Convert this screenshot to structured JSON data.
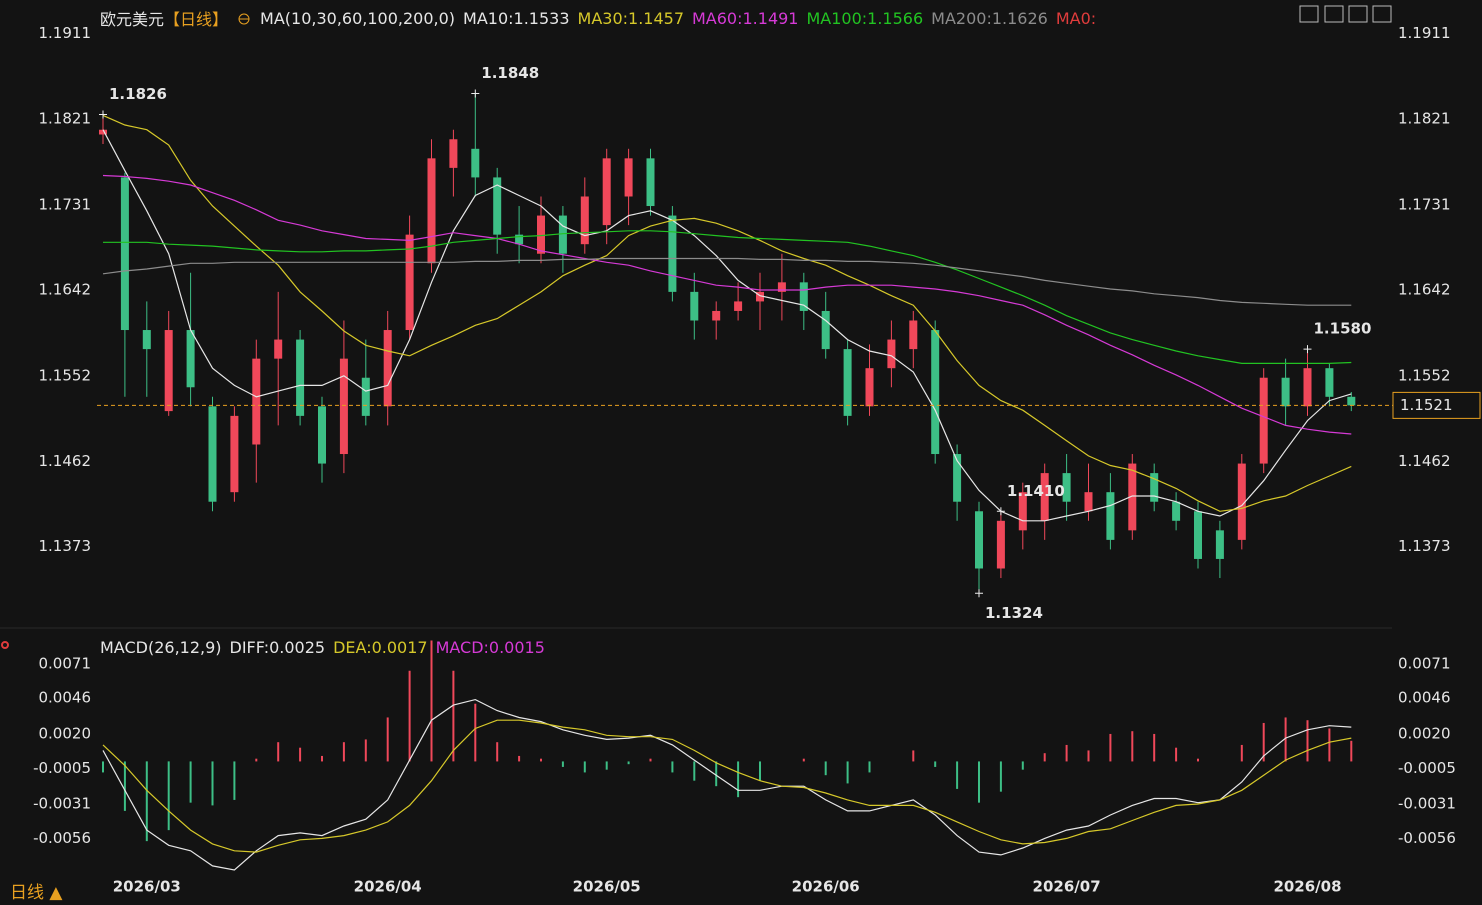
{
  "chart_data": [
    {
      "type": "candlestick",
      "title": "欧元美元",
      "subtitle": "【日线】",
      "subtitle_color": "#e8a020",
      "indicator": "MA(10,30,60,100,200,0)",
      "indicator_extra": "MA0:",
      "indicator_extra_color": "#e03c3c",
      "categories": [
        null,
        null,
        "2026/03",
        null,
        null,
        null,
        null,
        null,
        null,
        null,
        null,
        null,
        null,
        "2026/04",
        null,
        null,
        null,
        null,
        null,
        null,
        null,
        null,
        null,
        "2026/05",
        null,
        null,
        null,
        null,
        null,
        null,
        null,
        null,
        null,
        "2026/06",
        null,
        null,
        null,
        null,
        null,
        null,
        null,
        null,
        null,
        null,
        "2026/07",
        null,
        null,
        null,
        null,
        null,
        null,
        null,
        null,
        null,
        null,
        "2026/08",
        null,
        null
      ],
      "open": [
        1.1805,
        1.176,
        1.16,
        1.1515,
        1.16,
        1.152,
        1.143,
        1.148,
        1.157,
        1.159,
        1.152,
        1.147,
        1.155,
        1.152,
        1.16,
        1.167,
        1.177,
        1.179,
        1.176,
        1.17,
        1.168,
        1.172,
        1.169,
        1.171,
        1.174,
        1.178,
        1.172,
        1.164,
        1.161,
        1.162,
        1.163,
        1.164,
        1.165,
        1.162,
        1.158,
        1.152,
        1.156,
        1.158,
        1.16,
        1.147,
        1.141,
        1.135,
        1.139,
        1.14,
        1.145,
        1.141,
        1.143,
        1.139,
        1.145,
        1.142,
        1.141,
        1.139,
        1.138,
        1.146,
        1.155,
        1.152,
        1.156,
        1.153
      ],
      "high": [
        1.1826,
        1.1765,
        1.163,
        1.162,
        1.166,
        1.153,
        1.152,
        1.159,
        1.164,
        1.16,
        1.153,
        1.161,
        1.159,
        1.162,
        1.172,
        1.18,
        1.181,
        1.1848,
        1.177,
        1.173,
        1.174,
        1.173,
        1.176,
        1.179,
        1.179,
        1.179,
        1.173,
        1.166,
        1.163,
        1.165,
        1.166,
        1.168,
        1.166,
        1.164,
        1.159,
        1.1585,
        1.161,
        1.162,
        1.161,
        1.148,
        1.142,
        1.141,
        1.144,
        1.146,
        1.147,
        1.146,
        1.145,
        1.147,
        1.146,
        1.143,
        1.142,
        1.14,
        1.147,
        1.156,
        1.157,
        1.158,
        1.1565,
        1.1535
      ],
      "low": [
        1.1795,
        1.153,
        1.153,
        1.151,
        1.152,
        1.141,
        1.142,
        1.144,
        1.15,
        1.15,
        1.144,
        1.145,
        1.15,
        1.15,
        1.159,
        1.166,
        1.174,
        1.174,
        1.168,
        1.167,
        1.167,
        1.166,
        1.168,
        1.169,
        1.171,
        1.172,
        1.163,
        1.159,
        1.159,
        1.161,
        1.16,
        1.161,
        1.16,
        1.157,
        1.15,
        1.151,
        1.154,
        1.156,
        1.146,
        1.14,
        1.1324,
        1.134,
        1.137,
        1.138,
        1.14,
        1.14,
        1.137,
        1.138,
        1.141,
        1.139,
        1.135,
        1.134,
        1.137,
        1.145,
        1.15,
        1.151,
        1.152,
        1.1515
      ],
      "close": [
        1.181,
        1.16,
        1.158,
        1.16,
        1.154,
        1.142,
        1.151,
        1.157,
        1.159,
        1.151,
        1.146,
        1.157,
        1.151,
        1.16,
        1.17,
        1.178,
        1.18,
        1.176,
        1.17,
        1.169,
        1.172,
        1.168,
        1.174,
        1.178,
        1.178,
        1.173,
        1.164,
        1.161,
        1.162,
        1.163,
        1.164,
        1.165,
        1.162,
        1.158,
        1.151,
        1.156,
        1.159,
        1.161,
        1.147,
        1.142,
        1.135,
        1.14,
        1.143,
        1.145,
        1.142,
        1.143,
        1.138,
        1.146,
        1.142,
        1.14,
        1.136,
        1.136,
        1.146,
        1.155,
        1.152,
        1.156,
        1.153,
        1.1521
      ],
      "up_color": "#f0485a",
      "down_color": "#3dbf86",
      "series": [
        {
          "name": "MA10:1.1533",
          "color": "#e6e6e6",
          "values": [
            1.181,
            1.1767,
            1.1725,
            1.168,
            1.16,
            1.156,
            1.1542,
            1.153,
            1.1536,
            1.1542,
            1.1542,
            1.1552,
            1.1536,
            1.1542,
            1.159,
            1.165,
            1.1704,
            1.1741,
            1.1752,
            1.1741,
            1.173,
            1.1709,
            1.1699,
            1.1704,
            1.172,
            1.1725,
            1.1715,
            1.1699,
            1.1678,
            1.1652,
            1.1636,
            1.1631,
            1.1626,
            1.161,
            1.159,
            1.1578,
            1.1573,
            1.1556,
            1.1516,
            1.1463,
            1.1432,
            1.141,
            1.14,
            1.14,
            1.1405,
            1.141,
            1.1416,
            1.1426,
            1.1426,
            1.142,
            1.141,
            1.1405,
            1.1416,
            1.1442,
            1.1474,
            1.1505,
            1.1526,
            1.1533
          ]
        },
        {
          "name": "MA30:1.1457",
          "color": "#d6c82a",
          "values": [
            1.1825,
            1.1815,
            1.181,
            1.1794,
            1.1757,
            1.173,
            1.1709,
            1.1688,
            1.1668,
            1.164,
            1.162,
            1.1599,
            1.1584,
            1.1578,
            1.1573,
            1.1584,
            1.1594,
            1.1605,
            1.1612,
            1.1626,
            1.164,
            1.1657,
            1.1668,
            1.1678,
            1.1699,
            1.1709,
            1.1715,
            1.1717,
            1.1712,
            1.1704,
            1.1694,
            1.1683,
            1.1675,
            1.1668,
            1.1657,
            1.1647,
            1.1636,
            1.1626,
            1.1599,
            1.1568,
            1.1542,
            1.1526,
            1.1516,
            1.15,
            1.1484,
            1.1468,
            1.1458,
            1.1453,
            1.1444,
            1.1434,
            1.1421,
            1.141,
            1.1413,
            1.1421,
            1.1426,
            1.1437,
            1.1447,
            1.1457
          ]
        },
        {
          "name": "MA60:1.1491",
          "color": "#d63ad6",
          "values": [
            1.1762,
            1.1761,
            1.1759,
            1.1756,
            1.1752,
            1.1744,
            1.1736,
            1.1726,
            1.1715,
            1.171,
            1.1704,
            1.17,
            1.1696,
            1.1695,
            1.1694,
            1.1698,
            1.1702,
            1.1699,
            1.1696,
            1.169,
            1.1683,
            1.1679,
            1.1675,
            1.1671,
            1.1668,
            1.1662,
            1.1657,
            1.1652,
            1.1647,
            1.1645,
            1.1642,
            1.1642,
            1.1642,
            1.1645,
            1.1647,
            1.1647,
            1.1647,
            1.1645,
            1.1643,
            1.164,
            1.1636,
            1.1631,
            1.1626,
            1.1616,
            1.1605,
            1.1595,
            1.1584,
            1.1574,
            1.1563,
            1.1553,
            1.1542,
            1.153,
            1.1518,
            1.1509,
            1.15,
            1.1496,
            1.1493,
            1.1491
          ]
        },
        {
          "name": "MA100:1.1566",
          "color": "#22c322",
          "values": [
            1.1692,
            1.1692,
            1.1692,
            1.169,
            1.1689,
            1.1688,
            1.1686,
            1.1684,
            1.1683,
            1.1682,
            1.1682,
            1.1683,
            1.1683,
            1.1684,
            1.1685,
            1.1688,
            1.1692,
            1.1694,
            1.1696,
            1.1698,
            1.1699,
            1.1701,
            1.1702,
            1.1703,
            1.1704,
            1.1704,
            1.1703,
            1.1701,
            1.1699,
            1.1697,
            1.1696,
            1.1695,
            1.1694,
            1.1693,
            1.1692,
            1.1688,
            1.1683,
            1.1678,
            1.1671,
            1.1663,
            1.1654,
            1.1645,
            1.1636,
            1.1626,
            1.1615,
            1.1606,
            1.1597,
            1.159,
            1.1584,
            1.1578,
            1.1573,
            1.1569,
            1.1565,
            1.1565,
            1.1565,
            1.1565,
            1.1565,
            1.1566
          ]
        },
        {
          "name": "MA200:1.1626",
          "color": "#8c8c8c",
          "values": [
            1.1659,
            1.1662,
            1.1664,
            1.1667,
            1.167,
            1.167,
            1.1671,
            1.1671,
            1.1671,
            1.1671,
            1.1671,
            1.1671,
            1.1671,
            1.1671,
            1.1671,
            1.1671,
            1.1671,
            1.1672,
            1.1672,
            1.1673,
            1.1673,
            1.1674,
            1.1674,
            1.1675,
            1.1675,
            1.1675,
            1.1675,
            1.1675,
            1.1675,
            1.1675,
            1.1674,
            1.1674,
            1.1673,
            1.1673,
            1.1672,
            1.1672,
            1.1671,
            1.167,
            1.1668,
            1.1665,
            1.1662,
            1.1659,
            1.1656,
            1.1652,
            1.1649,
            1.1646,
            1.1643,
            1.1641,
            1.1638,
            1.1636,
            1.1634,
            1.1631,
            1.1629,
            1.1628,
            1.1627,
            1.1626,
            1.1626,
            1.1626
          ]
        }
      ],
      "ylim": [
        1.1296,
        1.1946
      ],
      "yticks": [
        1.1911,
        1.1821,
        1.1731,
        1.1642,
        1.1552,
        1.1462,
        1.1373
      ],
      "last_price": 1.1521,
      "last_price_color": "#e8a020",
      "annotations": [
        {
          "value": 1.1826,
          "label": "1.1826"
        },
        {
          "value": 1.1848,
          "label": "1.1848"
        },
        {
          "value": 1.141,
          "label": "1.1410"
        },
        {
          "value": 1.1324,
          "label": "1.1324"
        },
        {
          "value": 1.158,
          "label": "1.1580"
        }
      ]
    },
    {
      "type": "macd",
      "title": "MACD(26,12,9)",
      "up_color": "#f0485a",
      "down_color": "#3dbf86",
      "series": [
        {
          "name": "DIFF:0.0025",
          "color": "#e6e6e6",
          "values": [
            0.0008,
            -0.0021,
            -0.005,
            -0.0061,
            -0.0065,
            -0.0076,
            -0.0079,
            -0.0065,
            -0.0054,
            -0.0052,
            -0.0054,
            -0.0047,
            -0.0042,
            -0.0028,
            0.0001,
            0.003,
            0.0041,
            0.0045,
            0.0037,
            0.0032,
            0.0029,
            0.0023,
            0.0019,
            0.0016,
            0.0017,
            0.0019,
            0.0012,
            0.0001,
            -0.001,
            -0.0021,
            -0.0021,
            -0.0018,
            -0.0018,
            -0.0028,
            -0.0036,
            -0.0036,
            -0.0032,
            -0.0028,
            -0.0039,
            -0.0054,
            -0.0066,
            -0.0068,
            -0.0063,
            -0.0056,
            -0.005,
            -0.0047,
            -0.0039,
            -0.0032,
            -0.0027,
            -0.0027,
            -0.003,
            -0.0028,
            -0.0015,
            0.0004,
            0.0017,
            0.0023,
            0.0026,
            0.0025
          ]
        },
        {
          "name": "DEA:0.0017",
          "color": "#d6c82a",
          "values": [
            0.0012,
            -0.0003,
            -0.0021,
            -0.0036,
            -0.005,
            -0.006,
            -0.0065,
            -0.0066,
            -0.0061,
            -0.0057,
            -0.0056,
            -0.0054,
            -0.005,
            -0.0044,
            -0.0032,
            -0.0014,
            0.0008,
            0.0024,
            0.003,
            0.003,
            0.0028,
            0.0025,
            0.0023,
            0.0019,
            0.0018,
            0.0018,
            0.0016,
            0.0008,
            -0.0001,
            -0.0008,
            -0.0014,
            -0.0018,
            -0.0019,
            -0.0023,
            -0.0028,
            -0.0032,
            -0.0032,
            -0.0032,
            -0.0037,
            -0.0044,
            -0.0051,
            -0.0057,
            -0.006,
            -0.0059,
            -0.0056,
            -0.0051,
            -0.0049,
            -0.0043,
            -0.0037,
            -0.0032,
            -0.0031,
            -0.0028,
            -0.0021,
            -0.001,
            0.0001,
            0.0008,
            0.0014,
            0.0017
          ]
        },
        {
          "name": "MACD:0.0015",
          "color": "#d63ad6",
          "type": "bar",
          "values": [
            -0.0008,
            -0.0036,
            -0.0058,
            -0.005,
            -0.003,
            -0.0032,
            -0.0028,
            0.0002,
            0.0014,
            0.001,
            0.0004,
            0.0014,
            0.0016,
            0.0032,
            0.0066,
            0.0088,
            0.0066,
            0.0042,
            0.0014,
            0.0004,
            0.0002,
            -0.0004,
            -0.0008,
            -0.0006,
            -0.0002,
            0.0002,
            -0.0008,
            -0.0014,
            -0.0018,
            -0.0026,
            -0.0014,
            0,
            0.0002,
            -0.001,
            -0.0016,
            -0.0008,
            0,
            0.0008,
            -0.0004,
            -0.002,
            -0.003,
            -0.0022,
            -0.0006,
            0.0006,
            0.0012,
            0.0008,
            0.002,
            0.0022,
            0.002,
            0.001,
            0.0002,
            0,
            0.0012,
            0.0028,
            0.0032,
            0.003,
            0.0024,
            0.0015
          ]
        }
      ],
      "ylim": [
        -0.0079,
        0.0092
      ],
      "yticks": [
        0.0071,
        0.0046,
        {
          "value": 0.002,
          "label": "0.0020"
        },
        -0.0005,
        -0.0031,
        -0.0056
      ]
    }
  ],
  "footer": {
    "period": "日线 ▲"
  }
}
